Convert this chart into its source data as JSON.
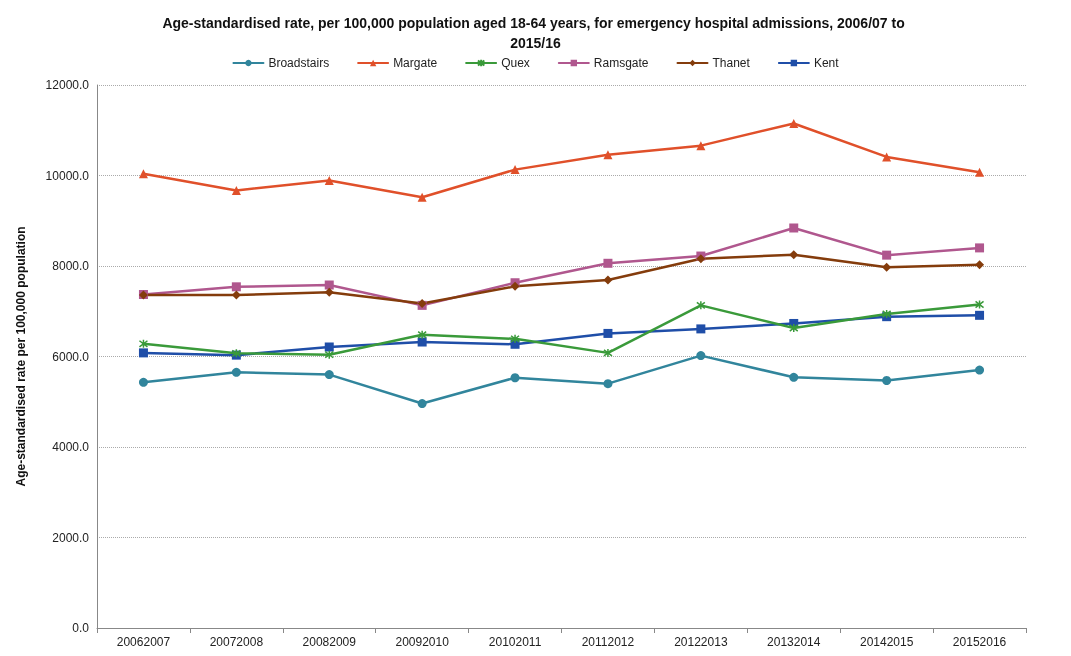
{
  "chart_data": {
    "type": "line",
    "title": "Age-standardised rate, per 100,000 population aged 18-64 years, for emergency hospital admissions, 2006/07 to 2015/16",
    "ylabel": "Age-standardised rate per 100,000 population",
    "categories": [
      "20062007",
      "20072008",
      "20082009",
      "20092010",
      "20102011",
      "20112012",
      "20122013",
      "20132014",
      "20142015",
      "20152016"
    ],
    "series": [
      {
        "name": "Broadstairs",
        "color": "#31859c",
        "marker": "circle",
        "values": [
          5430,
          5650,
          5600,
          4960,
          5530,
          5400,
          6020,
          5540,
          5470,
          5700
        ]
      },
      {
        "name": "Margate",
        "color": "#e0502a",
        "marker": "triangle",
        "values": [
          10040,
          9670,
          9890,
          9520,
          10130,
          10460,
          10660,
          11150,
          10410,
          10070
        ]
      },
      {
        "name": "Quex",
        "color": "#3a9a3a",
        "marker": "cross",
        "values": [
          6280,
          6070,
          6040,
          6480,
          6390,
          6080,
          7130,
          6630,
          6940,
          7150
        ]
      },
      {
        "name": "Ramsgate",
        "color": "#b0578e",
        "marker": "square",
        "values": [
          7370,
          7540,
          7580,
          7130,
          7630,
          8060,
          8220,
          8840,
          8240,
          8400
        ]
      },
      {
        "name": "Thanet",
        "color": "#843c0c",
        "marker": "diamond",
        "values": [
          7360,
          7360,
          7420,
          7170,
          7550,
          7690,
          8160,
          8250,
          7970,
          8030
        ]
      },
      {
        "name": "Kent",
        "color": "#1f4ea8",
        "marker": "square",
        "values": [
          6080,
          6030,
          6210,
          6320,
          6270,
          6510,
          6610,
          6730,
          6880,
          6910
        ]
      }
    ],
    "ylim": [
      0,
      12000
    ],
    "yticks": [
      {
        "value": 0,
        "label": "0.0"
      },
      {
        "value": 2000,
        "label": "2000.0"
      },
      {
        "value": 4000,
        "label": "4000.0"
      },
      {
        "value": 6000,
        "label": "6000.0"
      },
      {
        "value": 8000,
        "label": "8000.0"
      },
      {
        "value": 10000,
        "label": "10000.0"
      },
      {
        "value": 12000,
        "label": "12000.0"
      }
    ],
    "grid": "y",
    "legend": "top",
    "line_style": "solid"
  }
}
